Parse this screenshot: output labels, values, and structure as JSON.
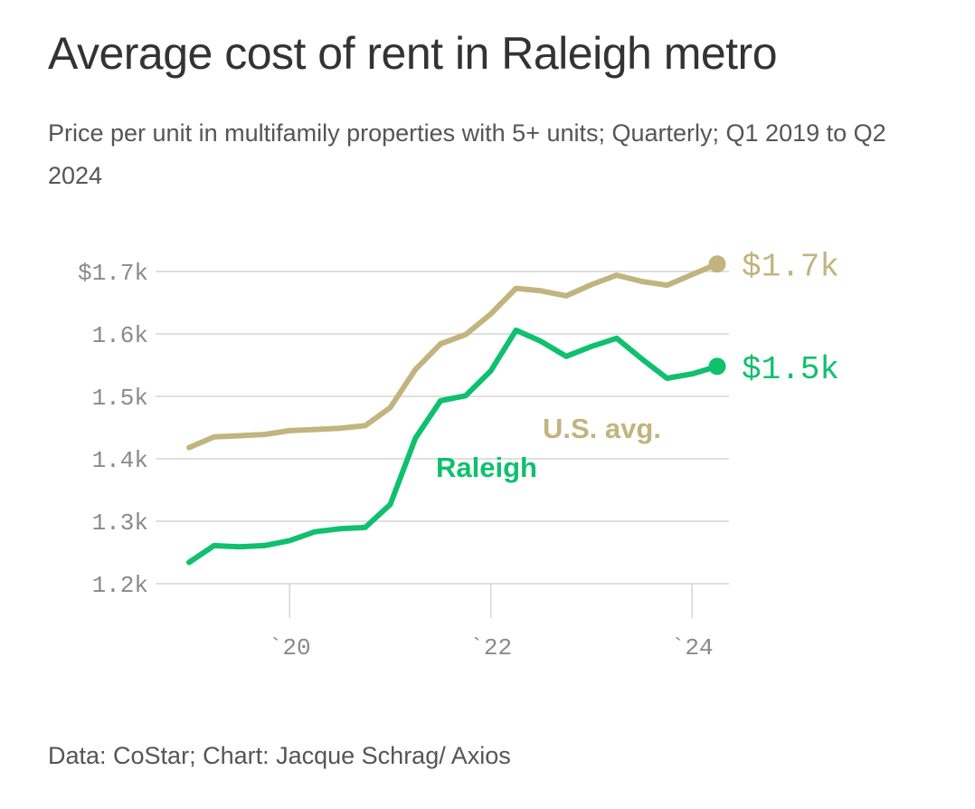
{
  "header": {
    "title": "Average cost of rent in Raleigh metro",
    "subtitle": "Price per unit in multifamily properties with 5+ units; Quarterly; Q1 2019 to Q2 2024"
  },
  "footer": {
    "source": "Data: CoStar; Chart: Jacque Schrag/ Axios"
  },
  "chart_data": {
    "type": "line",
    "title": "Average cost of rent in Raleigh metro",
    "xlabel": "",
    "ylabel": "",
    "ylim": [
      1.2,
      1.7
    ],
    "grid": true,
    "y_ticks": [
      {
        "value": 1.7,
        "label": "$1.7k"
      },
      {
        "value": 1.6,
        "label": "1.6k"
      },
      {
        "value": 1.5,
        "label": "1.5k"
      },
      {
        "value": 1.4,
        "label": "1.4k"
      },
      {
        "value": 1.3,
        "label": "1.3k"
      },
      {
        "value": 1.2,
        "label": "1.2k"
      }
    ],
    "x_ticks": [
      {
        "index": 4,
        "label": "`20"
      },
      {
        "index": 12,
        "label": "`22"
      },
      {
        "index": 20,
        "label": "`24"
      }
    ],
    "x": [
      "Q1 2019",
      "Q2 2019",
      "Q3 2019",
      "Q4 2019",
      "Q1 2020",
      "Q2 2020",
      "Q3 2020",
      "Q4 2020",
      "Q1 2021",
      "Q2 2021",
      "Q3 2021",
      "Q4 2021",
      "Q1 2022",
      "Q2 2022",
      "Q3 2022",
      "Q4 2022",
      "Q1 2023",
      "Q2 2023",
      "Q3 2023",
      "Q4 2023",
      "Q1 2024",
      "Q2 2024"
    ],
    "series": [
      {
        "name": "U.S. avg.",
        "color": "#c2b47e",
        "end_label": "$1.7k",
        "values": [
          1.418,
          1.435,
          1.437,
          1.439,
          1.445,
          1.447,
          1.449,
          1.453,
          1.482,
          1.543,
          1.584,
          1.599,
          1.632,
          1.673,
          1.669,
          1.661,
          1.679,
          1.694,
          1.684,
          1.678,
          1.695,
          1.712
        ]
      },
      {
        "name": "Raleigh",
        "color": "#0fc06d",
        "end_label": "$1.5k",
        "values": [
          1.234,
          1.261,
          1.259,
          1.261,
          1.269,
          1.283,
          1.288,
          1.29,
          1.327,
          1.433,
          1.493,
          1.501,
          1.541,
          1.606,
          1.588,
          1.564,
          1.58,
          1.593,
          1.56,
          1.529,
          1.536,
          1.548
        ]
      }
    ]
  }
}
